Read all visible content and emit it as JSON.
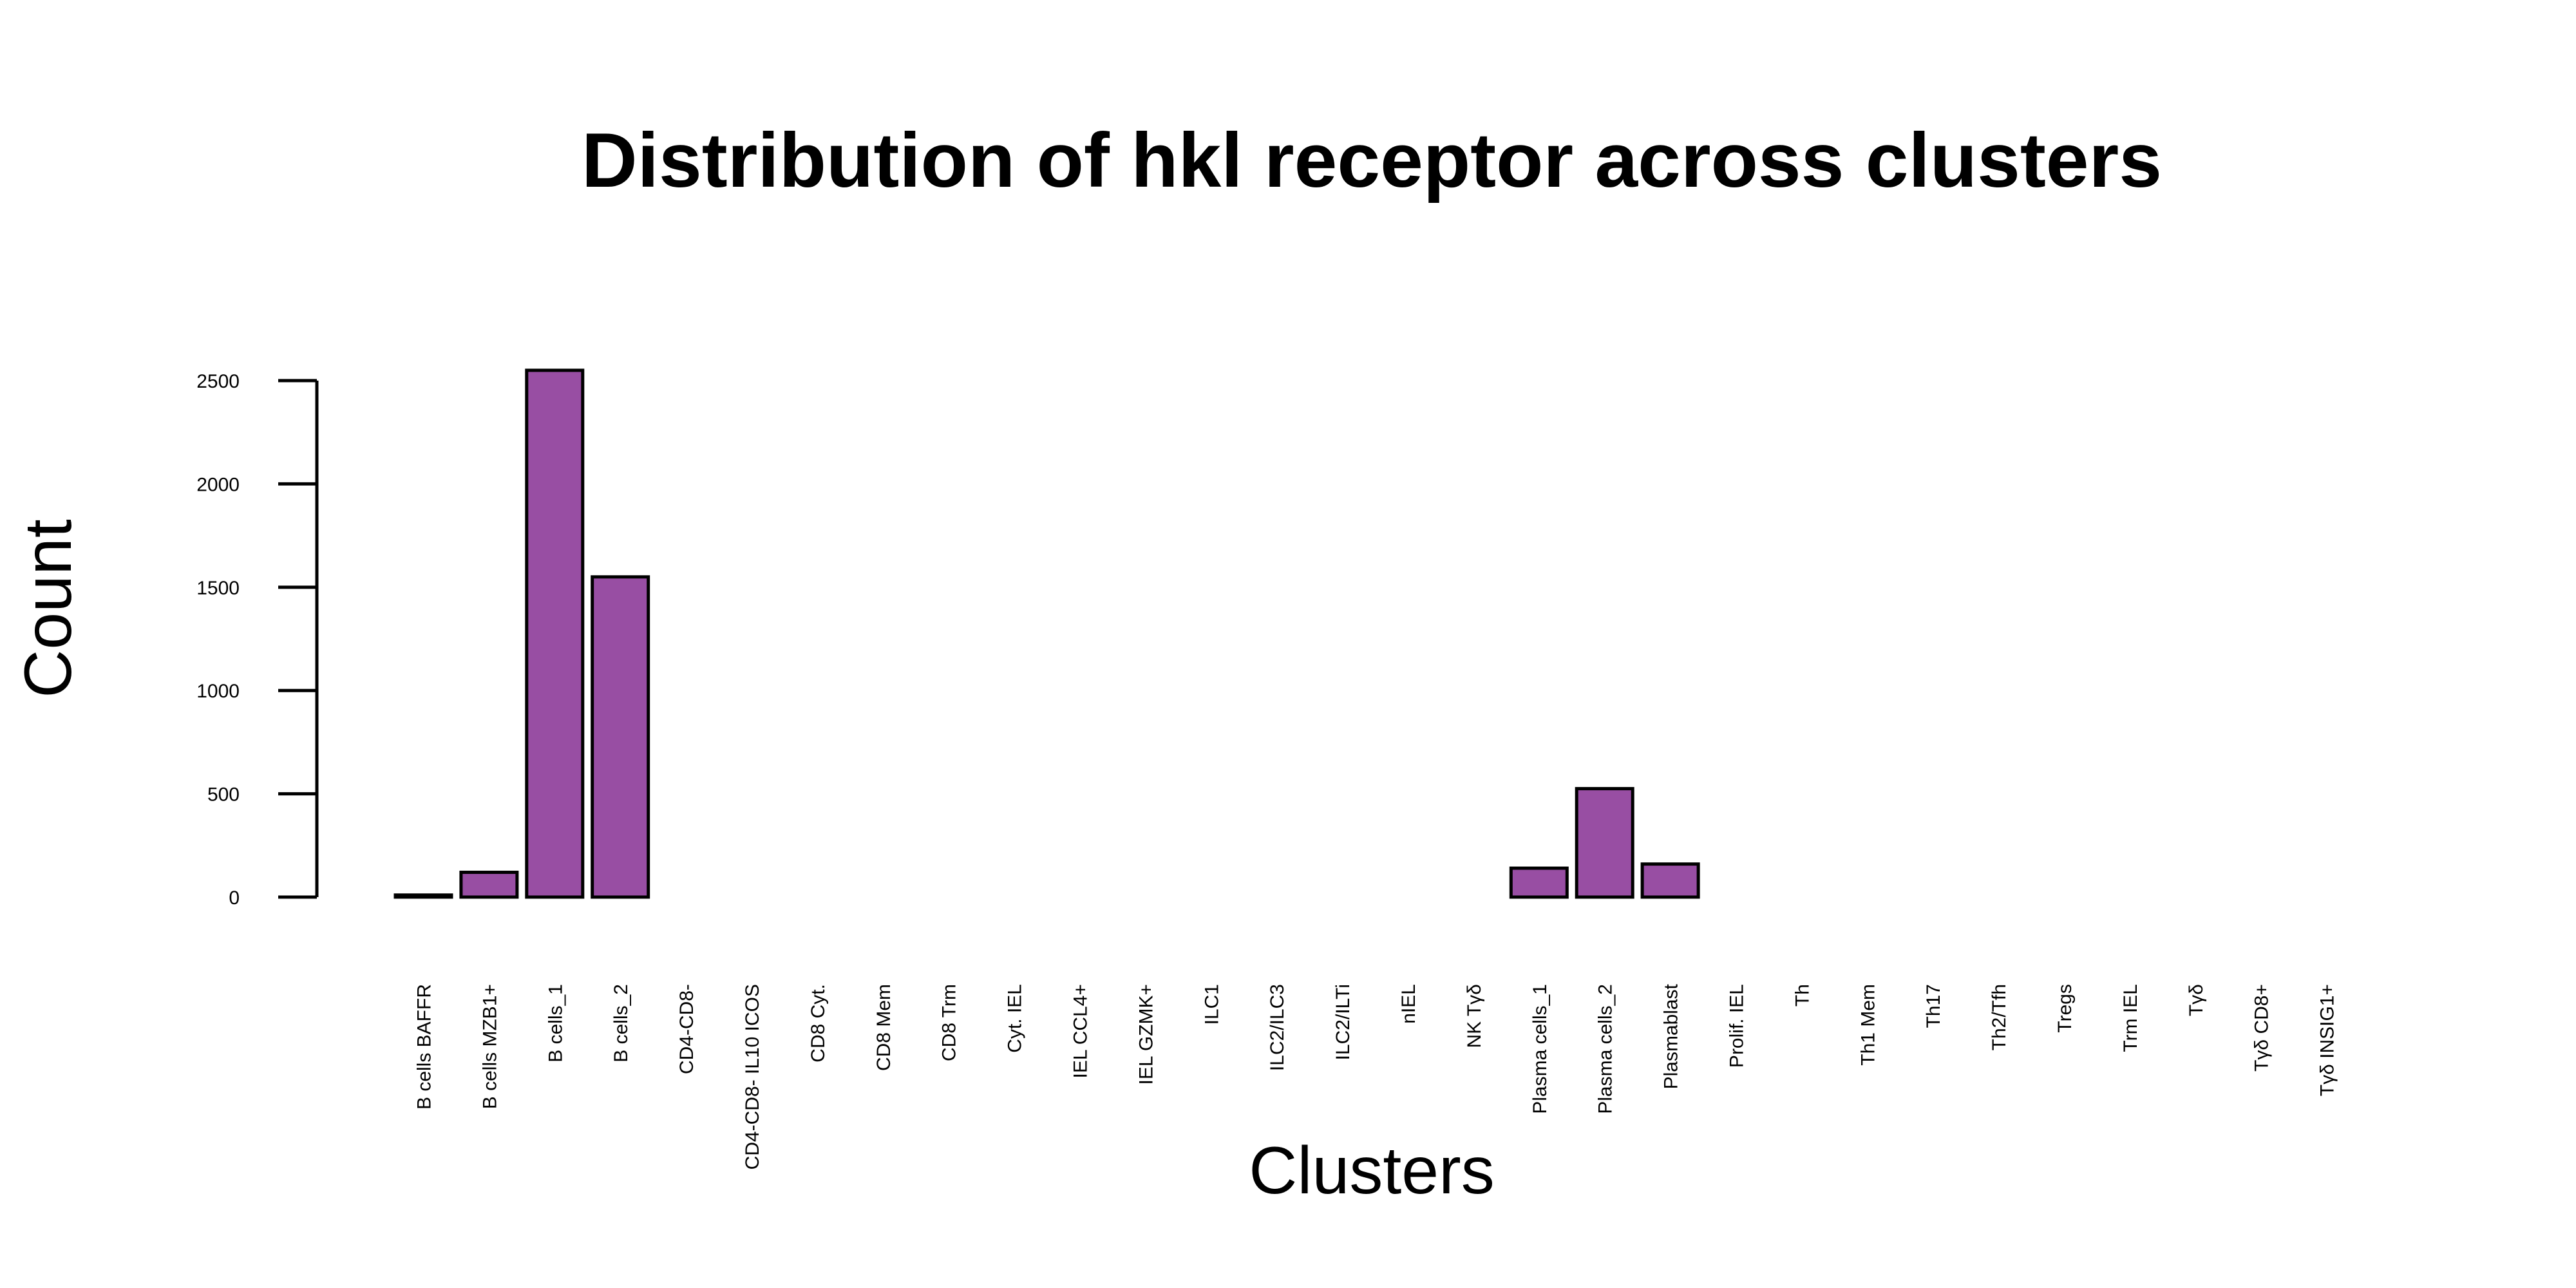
{
  "chart_data": {
    "type": "bar",
    "title": "Distribution of hkl receptor across clusters",
    "xlabel": "Clusters",
    "ylabel": "Count",
    "ylim": [
      0,
      2550
    ],
    "yticks": [
      0,
      500,
      1000,
      1500,
      2000,
      2500
    ],
    "bar_color": "#984EA3",
    "grid": false,
    "legend": "none",
    "categories": [
      "B cells BAFFR",
      "B cells MZB1+",
      "B cells_1",
      "B cells_2",
      "CD4-CD8-",
      "CD4-CD8- IL10 ICOS",
      "CD8 Cyt.",
      "CD8 Mem",
      "CD8 Trm",
      "Cyt. IEL",
      "IEL CCL4+",
      "IEL GZMK+",
      "ILC1",
      "ILC2/ILC3",
      "ILC2/ILTi",
      "nIEL",
      "NK Tγδ",
      "Plasma cells_1",
      "Plasma cells_2",
      "Plasmablast",
      "Prolif. IEL",
      "Th",
      "Th1 Mem",
      "Th17",
      "Th2/Tfh",
      "Tregs",
      "Trm IEL",
      "Tγδ",
      "Tγδ CD8+",
      "Tγδ INSIG1+"
    ],
    "values": [
      10,
      120,
      2550,
      1550,
      0,
      0,
      0,
      0,
      0,
      0,
      0,
      0,
      0,
      0,
      0,
      0,
      0,
      140,
      525,
      160,
      0,
      0,
      0,
      0,
      0,
      0,
      0,
      0,
      0,
      0
    ]
  }
}
